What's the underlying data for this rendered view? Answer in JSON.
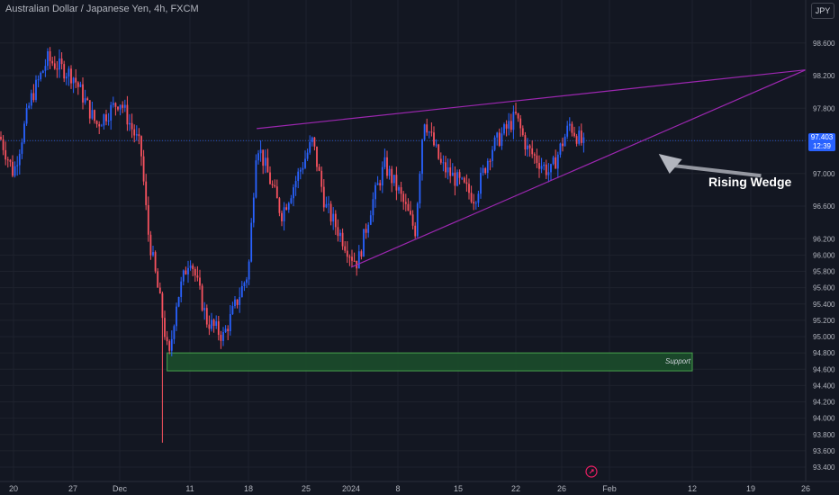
{
  "header": {
    "title": "Australian Dollar / Japanese Yen, 4h, FXCM",
    "currency_button": "JPY"
  },
  "price_tag": {
    "price": "97.403",
    "countdown": "12:39"
  },
  "colors": {
    "up": "#2962ff",
    "down": "#f7525f",
    "wedge": "#9c27b0",
    "support_fill": "#1b4d2b",
    "support_border": "#4caf50",
    "background": "#131722",
    "grid": "#1e222d",
    "axis_text": "#b2b5be"
  },
  "icons": {
    "replay": "replay-icon"
  },
  "annotations": {
    "wedge_label": "Rising Wedge",
    "support_label": "Support"
  },
  "chart_data": {
    "type": "candlestick",
    "title": "Australian Dollar / Japanese Yen, 4h, FXCM",
    "ylim": [
      93.2,
      98.8
    ],
    "y_ticks": [
      "98.600",
      "98.200",
      "97.800",
      "97.400",
      "97.000",
      "96.600",
      "96.200",
      "96.000",
      "95.800",
      "95.600",
      "95.400",
      "95.200",
      "95.000",
      "94.800",
      "94.600",
      "94.400",
      "94.200",
      "94.000",
      "93.800",
      "93.600",
      "93.400"
    ],
    "x_ticks": [
      "20",
      "27",
      "Dec",
      "11",
      "18",
      "25",
      "2024",
      "8",
      "15",
      "22",
      "26",
      "Feb",
      "12",
      "19",
      "26"
    ],
    "price_path": [
      {
        "date": "Nov 16",
        "price": 97.45
      },
      {
        "date": "Nov 20",
        "price": 97.0
      },
      {
        "date": "Nov 22",
        "price": 97.9
      },
      {
        "date": "Nov 24",
        "price": 98.4
      },
      {
        "date": "Nov 27",
        "price": 98.2
      },
      {
        "date": "Nov 29",
        "price": 97.6
      },
      {
        "date": "Dec 1",
        "price": 97.9
      },
      {
        "date": "Dec 4",
        "price": 97.3
      },
      {
        "date": "Dec 5",
        "price": 96.3
      },
      {
        "date": "Dec 7",
        "price": 95.3
      },
      {
        "date": "Dec 8",
        "price": 94.7
      },
      {
        "date": "Dec 9",
        "price": 95.4
      },
      {
        "date": "Dec 11",
        "price": 96.0
      },
      {
        "date": "Dec 13",
        "price": 95.2
      },
      {
        "date": "Dec 15",
        "price": 95.0
      },
      {
        "date": "Dec 18",
        "price": 95.8
      },
      {
        "date": "Dec 19",
        "price": 97.4
      },
      {
        "date": "Dec 21",
        "price": 96.8
      },
      {
        "date": "Dec 22",
        "price": 96.5
      },
      {
        "date": "Dec 26",
        "price": 97.4
      },
      {
        "date": "Dec 28",
        "price": 96.6
      },
      {
        "date": "Jan 1",
        "price": 96.0
      },
      {
        "date": "Jan 2",
        "price": 95.9
      },
      {
        "date": "Jan 4",
        "price": 96.6
      },
      {
        "date": "Jan 6",
        "price": 97.1
      },
      {
        "date": "Jan 8",
        "price": 96.8
      },
      {
        "date": "Jan 10",
        "price": 96.3
      },
      {
        "date": "Jan 11",
        "price": 97.7
      },
      {
        "date": "Jan 13",
        "price": 97.1
      },
      {
        "date": "Jan 15",
        "price": 96.9
      },
      {
        "date": "Jan 17",
        "price": 96.7
      },
      {
        "date": "Jan 19",
        "price": 97.3
      },
      {
        "date": "Jan 22",
        "price": 97.7
      },
      {
        "date": "Jan 23",
        "price": 97.3
      },
      {
        "date": "Jan 25",
        "price": 97.0
      },
      {
        "date": "Jan 27",
        "price": 97.6
      },
      {
        "date": "Jan 29",
        "price": 97.3
      }
    ],
    "candle_extremes": {
      "low": 93.7,
      "low_date": "Dec 7"
    },
    "current_price": 97.403,
    "wedge_upper": [
      {
        "date": "Dec 19",
        "price": 97.55
      },
      {
        "date": "Feb 26",
        "price": 98.27
      }
    ],
    "wedge_lower": [
      {
        "date": "Jan 1",
        "price": 95.85
      },
      {
        "date": "Feb 26",
        "price": 98.27
      }
    ],
    "support_zone": {
      "from": 94.58,
      "to": 94.8,
      "start": "Dec 8",
      "end": "Feb 12"
    },
    "arrow": {
      "from": {
        "date": "Feb 17",
        "price": 96.95
      },
      "to": {
        "date": "Feb 3",
        "price": 97.35
      }
    },
    "grid": true
  }
}
